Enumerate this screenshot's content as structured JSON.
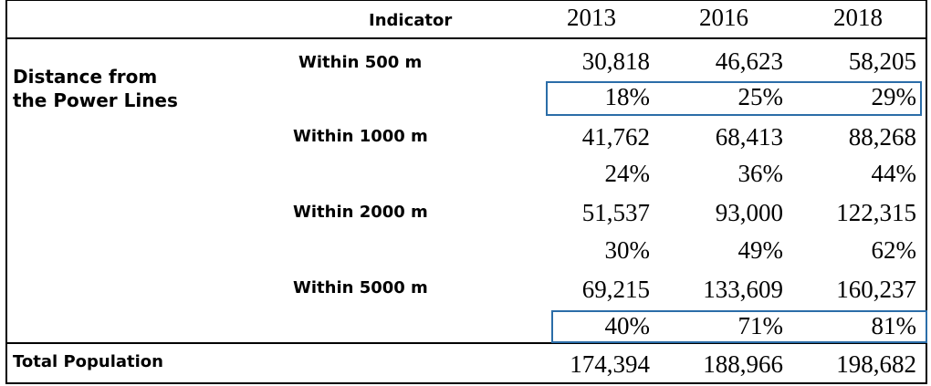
{
  "header": {
    "indicator": "Indicator",
    "years": [
      "2013",
      "2016",
      "2018"
    ]
  },
  "group_label": "Distance from the Power Lines",
  "rows": [
    {
      "label": "Within 500 m",
      "counts": [
        "30,818",
        "46,623",
        "58,205"
      ],
      "shares": [
        "18%",
        "25%",
        "29%"
      ]
    },
    {
      "label": "Within 1000 m",
      "counts": [
        "41,762",
        "68,413",
        "88,268"
      ],
      "shares": [
        "24%",
        "36%",
        "44%"
      ]
    },
    {
      "label": "Within 2000 m",
      "counts": [
        "51,537",
        "93,000",
        "122,315"
      ],
      "shares": [
        "30%",
        "49%",
        "62%"
      ]
    },
    {
      "label": "Within 5000 m",
      "counts": [
        "69,215",
        "133,609",
        "160,237"
      ],
      "shares": [
        "40%",
        "71%",
        "81%"
      ]
    }
  ],
  "total": {
    "label": "Total Population",
    "values": [
      "174,394",
      "188,966",
      "198,682"
    ]
  },
  "highlight_color": "#2b6da8"
}
